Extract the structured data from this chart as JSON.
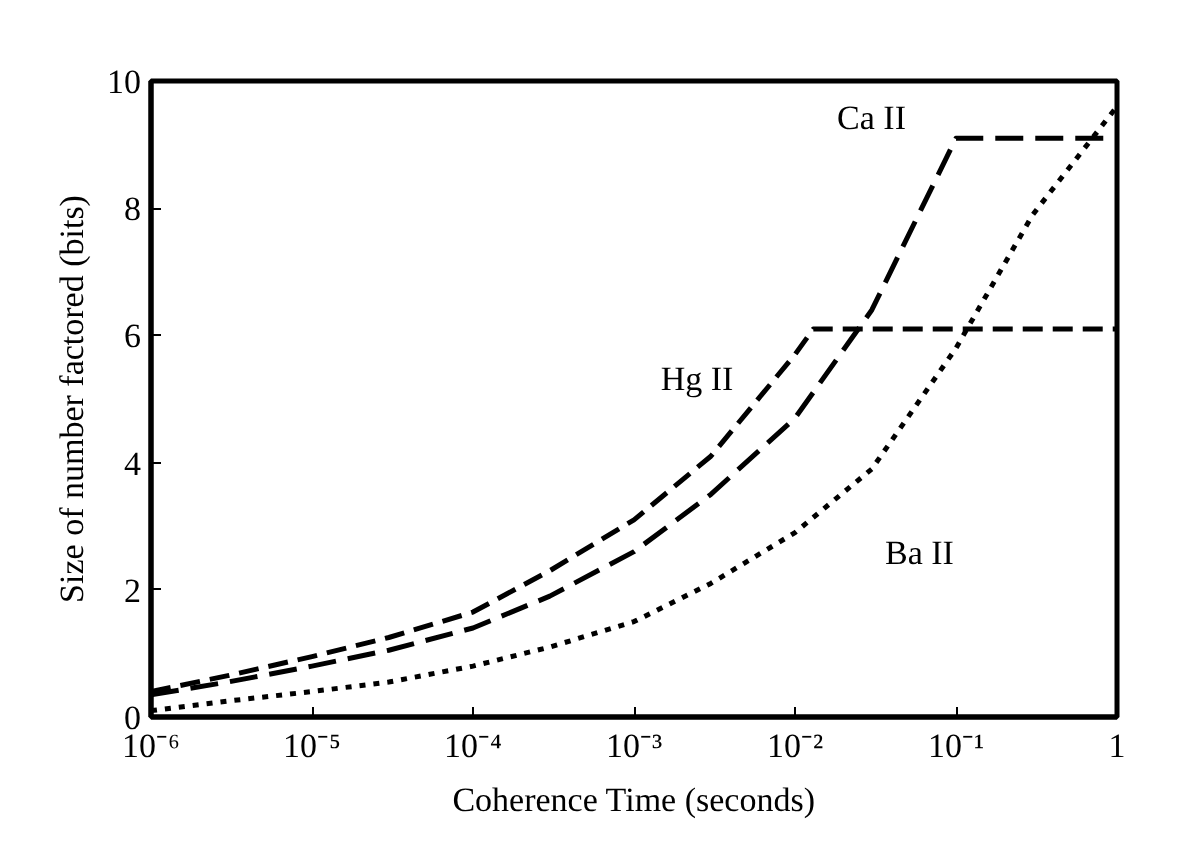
{
  "chart_data": {
    "type": "line",
    "xlabel": "Coherence Time (seconds)",
    "ylabel": "Size of number factored (bits)",
    "log": "x",
    "grid": false,
    "marker": "none",
    "xlim": [
      1e-06,
      1
    ],
    "ylim": [
      0,
      10
    ],
    "xticks": [
      {
        "value": 1e-06,
        "label": "10⁻⁶"
      },
      {
        "value": 1e-05,
        "label": "10⁻⁵"
      },
      {
        "value": 0.0001,
        "label": "10⁻⁴"
      },
      {
        "value": 0.001,
        "label": "10⁻³"
      },
      {
        "value": 0.01,
        "label": "10⁻²"
      },
      {
        "value": 0.1,
        "label": "10⁻¹"
      },
      1
    ],
    "yticks": [
      0,
      2,
      4,
      6,
      8,
      10
    ],
    "series": [
      {
        "name": "Ca II",
        "color": "#000000",
        "line_style": "dashed",
        "x": [
          1e-06,
          3e-06,
          1e-05,
          3e-05,
          0.0001,
          0.0003,
          0.001,
          0.003,
          0.01,
          0.03,
          0.1,
          1
        ],
        "values": [
          0.35,
          0.55,
          0.8,
          1.05,
          1.4,
          1.9,
          2.6,
          3.5,
          4.7,
          6.4,
          9.1,
          9.1
        ]
      },
      {
        "name": "Hg II",
        "color": "#000000",
        "line_style": "dashed",
        "x": [
          1e-06,
          3e-06,
          1e-05,
          3e-05,
          0.0001,
          0.0003,
          0.001,
          0.003,
          0.01,
          0.013,
          1
        ],
        "values": [
          0.4,
          0.65,
          0.95,
          1.25,
          1.65,
          2.3,
          3.1,
          4.1,
          5.7,
          6.1,
          6.1
        ]
      },
      {
        "name": "Ba II",
        "color": "#000000",
        "line_style": "dotted",
        "x": [
          1e-06,
          3e-06,
          1e-05,
          3e-05,
          0.0001,
          0.0003,
          0.001,
          0.003,
          0.01,
          0.03,
          0.1,
          0.3,
          1
        ],
        "values": [
          0.1,
          0.25,
          0.4,
          0.55,
          0.8,
          1.1,
          1.5,
          2.1,
          2.9,
          3.9,
          5.8,
          7.9,
          9.6
        ]
      }
    ]
  }
}
